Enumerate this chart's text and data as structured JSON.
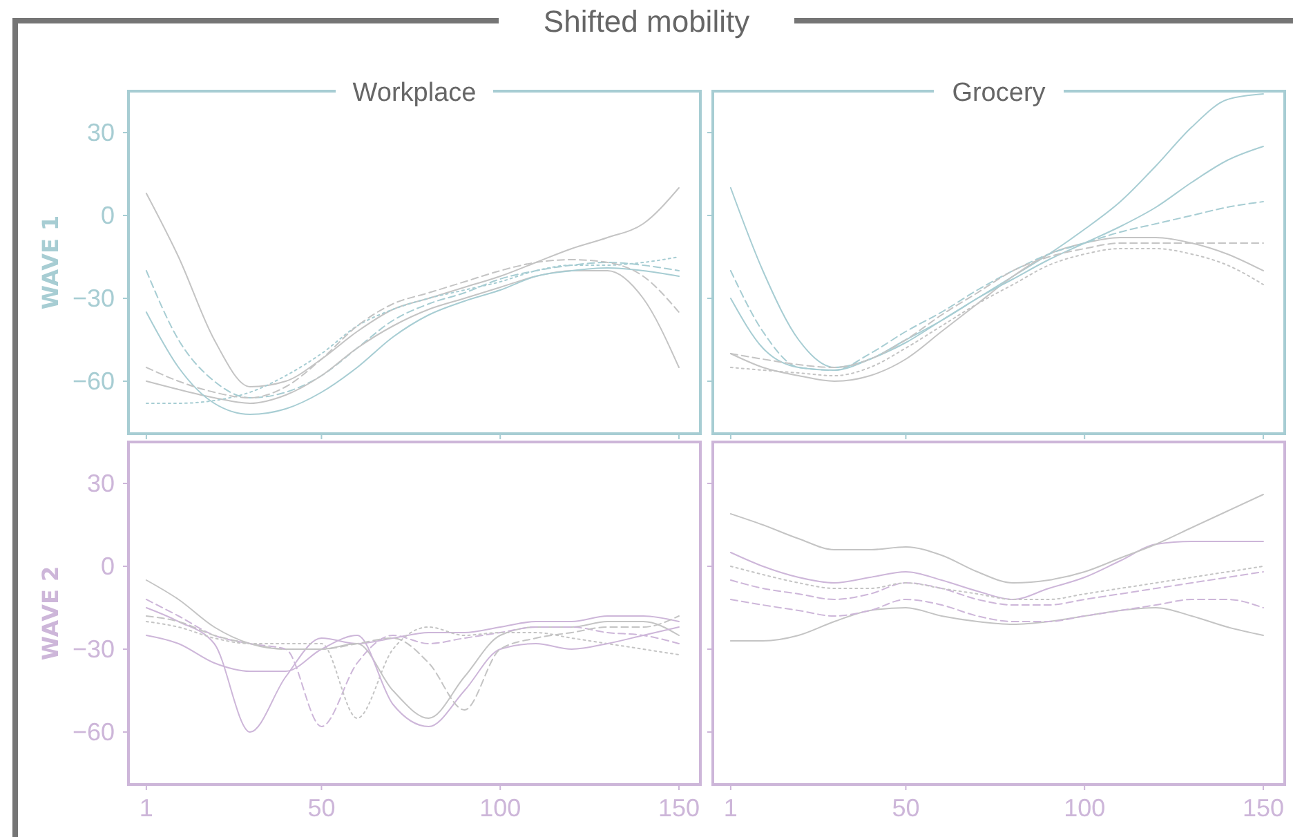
{
  "chart_data": [
    {
      "type": "line",
      "title": "Workplace",
      "ylabel": "WAVE 1",
      "annotations": [
        "Shifted mobility"
      ],
      "tick_labels": "y",
      "xlim": [
        -4,
        156
      ],
      "ylim": [
        -79,
        45
      ],
      "xticks": [
        {
          "value": 1,
          "label": null
        },
        {
          "value": 50,
          "label": null
        },
        {
          "value": 100,
          "label": null
        },
        {
          "value": 150,
          "label": null
        }
      ],
      "yticks": [
        {
          "value": -60,
          "label": "−60"
        },
        {
          "value": -30,
          "label": "−30"
        },
        {
          "value": 0,
          "label": "0"
        },
        {
          "value": 30,
          "label": "30"
        }
      ],
      "grid": false,
      "x": [
        1,
        10,
        20,
        30,
        40,
        50,
        60,
        70,
        80,
        90,
        100,
        110,
        120,
        130,
        140,
        150
      ],
      "series": [
        {
          "color": "#a7cdd3",
          "line_style": "dashed",
          "values": [
            -20,
            -45,
            -60,
            -66,
            -64,
            -58,
            -48,
            -38,
            -32,
            -28,
            -23,
            -20,
            -18,
            -17,
            -18,
            -20
          ]
        },
        {
          "color": "#c4c4c4",
          "line_style": "solid",
          "values": [
            8,
            -15,
            -45,
            -62,
            -60,
            -52,
            -42,
            -34,
            -30,
            -26,
            -22,
            -17,
            -12,
            -8,
            -3,
            10
          ]
        },
        {
          "color": "#c4c4c4",
          "line_style": "solid",
          "values": [
            -60,
            -63,
            -66,
            -68,
            -65,
            -58,
            -48,
            -40,
            -34,
            -30,
            -26,
            -22,
            -20,
            -20,
            -30,
            -55
          ]
        },
        {
          "color": "#a7cdd3",
          "line_style": "dotted",
          "values": [
            -68,
            -68,
            -67,
            -64,
            -58,
            -50,
            -40,
            -34,
            -30,
            -27,
            -24,
            -20,
            -18,
            -18,
            -17,
            -15
          ]
        },
        {
          "color": "#a7cdd3",
          "line_style": "solid",
          "values": [
            -35,
            -55,
            -68,
            -72,
            -70,
            -64,
            -55,
            -44,
            -36,
            -31,
            -27,
            -22,
            -20,
            -19,
            -20,
            -22
          ]
        },
        {
          "color": "#c4c4c4",
          "line_style": "dashed",
          "values": [
            -55,
            -60,
            -64,
            -66,
            -62,
            -52,
            -40,
            -32,
            -28,
            -24,
            -20,
            -17,
            -16,
            -17,
            -22,
            -35
          ]
        }
      ]
    },
    {
      "type": "line",
      "title": "Grocery",
      "tick_labels": false,
      "xlim": [
        -4,
        156
      ],
      "ylim": [
        -79,
        45
      ],
      "xticks": [
        {
          "value": 1,
          "label": null
        },
        {
          "value": 50,
          "label": null
        },
        {
          "value": 100,
          "label": null
        },
        {
          "value": 150,
          "label": null
        }
      ],
      "yticks": [
        {
          "value": -60,
          "label": null
        },
        {
          "value": -30,
          "label": null
        },
        {
          "value": 0,
          "label": null
        },
        {
          "value": 30,
          "label": null
        }
      ],
      "grid": false,
      "x": [
        1,
        10,
        20,
        30,
        40,
        50,
        60,
        70,
        80,
        90,
        100,
        110,
        120,
        130,
        140,
        150
      ],
      "series": [
        {
          "color": "#a7cdd3",
          "line_style": "solid",
          "values": [
            10,
            -20,
            -45,
            -55,
            -52,
            -45,
            -38,
            -30,
            -22,
            -14,
            -5,
            5,
            18,
            32,
            42,
            44
          ]
        },
        {
          "color": "#c4c4c4",
          "line_style": "solid",
          "values": [
            -50,
            -55,
            -58,
            -60,
            -58,
            -52,
            -42,
            -32,
            -22,
            -14,
            -10,
            -8,
            -8,
            -10,
            -14,
            -20
          ]
        },
        {
          "color": "#a7cdd3",
          "line_style": "dashed",
          "values": [
            -20,
            -42,
            -55,
            -56,
            -50,
            -42,
            -35,
            -27,
            -20,
            -14,
            -10,
            -6,
            -3,
            0,
            3,
            5
          ]
        },
        {
          "color": "#c4c4c4",
          "line_style": "dotted",
          "values": [
            -55,
            -56,
            -57,
            -58,
            -55,
            -48,
            -40,
            -32,
            -25,
            -18,
            -14,
            -12,
            -12,
            -14,
            -18,
            -25
          ]
        },
        {
          "color": "#a7cdd3",
          "line_style": "solid",
          "values": [
            -30,
            -48,
            -55,
            -56,
            -52,
            -46,
            -38,
            -30,
            -23,
            -16,
            -10,
            -4,
            3,
            12,
            20,
            25
          ]
        },
        {
          "color": "#c4c4c4",
          "line_style": "dashed",
          "values": [
            -50,
            -52,
            -54,
            -55,
            -52,
            -45,
            -36,
            -28,
            -20,
            -15,
            -12,
            -10,
            -10,
            -10,
            -10,
            -10
          ]
        }
      ]
    },
    {
      "type": "line",
      "ylabel": "WAVE 2",
      "xlim": [
        -4,
        156
      ],
      "ylim": [
        -79,
        45
      ],
      "xticks": [
        1,
        50,
        100,
        150
      ],
      "yticks": [
        {
          "value": -60,
          "label": "−60"
        },
        {
          "value": -30,
          "label": "−30"
        },
        {
          "value": 0,
          "label": "0"
        },
        {
          "value": 30,
          "label": "30"
        }
      ],
      "grid": false,
      "x": [
        1,
        10,
        20,
        30,
        40,
        50,
        60,
        70,
        80,
        90,
        100,
        110,
        120,
        130,
        140,
        150
      ],
      "series": [
        {
          "color": "#cdb6d9",
          "line_style": "solid",
          "values": [
            -15,
            -20,
            -28,
            -60,
            -40,
            -26,
            -28,
            -26,
            -24,
            -24,
            -22,
            -20,
            -20,
            -18,
            -18,
            -20
          ]
        },
        {
          "color": "#c4c4c4",
          "line_style": "solid",
          "values": [
            -5,
            -12,
            -22,
            -28,
            -30,
            -30,
            -28,
            -45,
            -55,
            -40,
            -25,
            -22,
            -22,
            -20,
            -20,
            -25
          ]
        },
        {
          "color": "#cdb6d9",
          "line_style": "dashed",
          "values": [
            -12,
            -18,
            -25,
            -28,
            -30,
            -58,
            -35,
            -25,
            -28,
            -26,
            -24,
            -22,
            -22,
            -24,
            -25,
            -28
          ]
        },
        {
          "color": "#c4c4c4",
          "line_style": "dotted",
          "values": [
            -20,
            -22,
            -26,
            -28,
            -28,
            -28,
            -55,
            -30,
            -22,
            -25,
            -24,
            -24,
            -26,
            -28,
            -30,
            -32
          ]
        },
        {
          "color": "#cdb6d9",
          "line_style": "solid",
          "values": [
            -25,
            -28,
            -35,
            -38,
            -38,
            -30,
            -25,
            -50,
            -58,
            -45,
            -30,
            -28,
            -30,
            -28,
            -25,
            -22
          ]
        },
        {
          "color": "#c4c4c4",
          "line_style": "dashed",
          "values": [
            -18,
            -20,
            -25,
            -28,
            -30,
            -30,
            -28,
            -26,
            -35,
            -52,
            -30,
            -26,
            -24,
            -22,
            -22,
            -18
          ]
        }
      ]
    },
    {
      "type": "line",
      "tick_labels": "x",
      "xlim": [
        -4,
        156
      ],
      "ylim": [
        -79,
        45
      ],
      "xticks": [
        1,
        50,
        100,
        150
      ],
      "yticks": [
        {
          "value": -60,
          "label": null
        },
        {
          "value": -30,
          "label": null
        },
        {
          "value": 0,
          "label": null
        },
        {
          "value": 30,
          "label": null
        }
      ],
      "grid": false,
      "x": [
        1,
        10,
        20,
        30,
        40,
        50,
        60,
        70,
        80,
        90,
        100,
        110,
        120,
        130,
        140,
        150
      ],
      "series": [
        {
          "color": "#cdb6d9",
          "line_style": "solid",
          "values": [
            5,
            0,
            -4,
            -6,
            -4,
            -2,
            -5,
            -9,
            -12,
            -8,
            -4,
            2,
            8,
            9,
            9,
            9
          ]
        },
        {
          "color": "#c4c4c4",
          "line_style": "solid",
          "values": [
            19,
            15,
            10,
            6,
            6,
            7,
            4,
            -2,
            -6,
            -5,
            -2,
            3,
            8,
            14,
            20,
            26
          ]
        },
        {
          "color": "#c4c4c4",
          "line_style": "solid",
          "values": [
            -27,
            -27,
            -25,
            -20,
            -16,
            -15,
            -18,
            -20,
            -21,
            -20,
            -18,
            -16,
            -15,
            -18,
            -22,
            -25
          ]
        },
        {
          "color": "#cdb6d9",
          "line_style": "dashed",
          "values": [
            -5,
            -8,
            -10,
            -12,
            -10,
            -6,
            -8,
            -12,
            -14,
            -14,
            -12,
            -10,
            -8,
            -6,
            -4,
            -2
          ]
        },
        {
          "color": "#c4c4c4",
          "line_style": "dotted",
          "values": [
            0,
            -3,
            -6,
            -8,
            -8,
            -6,
            -8,
            -10,
            -12,
            -12,
            -10,
            -8,
            -6,
            -4,
            -2,
            0
          ]
        },
        {
          "color": "#cdb6d9",
          "line_style": "dashed",
          "values": [
            -12,
            -14,
            -16,
            -18,
            -16,
            -12,
            -14,
            -18,
            -20,
            -20,
            -18,
            -16,
            -14,
            -12,
            -12,
            -15
          ]
        }
      ]
    }
  ]
}
